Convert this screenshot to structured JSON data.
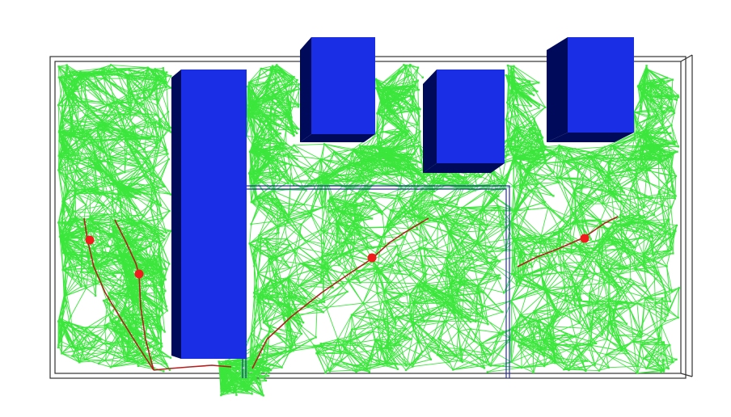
{
  "scene": {
    "description_visible_text": "",
    "colors": {
      "background": "#ffffff",
      "roadmap_edges": "#3ce63c",
      "roadmap_nodes": "#3ce63c",
      "obstacle_front": "#1a2ee6",
      "obstacle_side": "#000a5a",
      "path": "#b41e1e",
      "waypoints": "#ee1c1c",
      "room_outline": "#2a2ab0",
      "boundary": "#333333"
    },
    "icons": [
      "obstacle-box",
      "waypoint-dot",
      "roadmap-graph",
      "planned-path"
    ]
  }
}
